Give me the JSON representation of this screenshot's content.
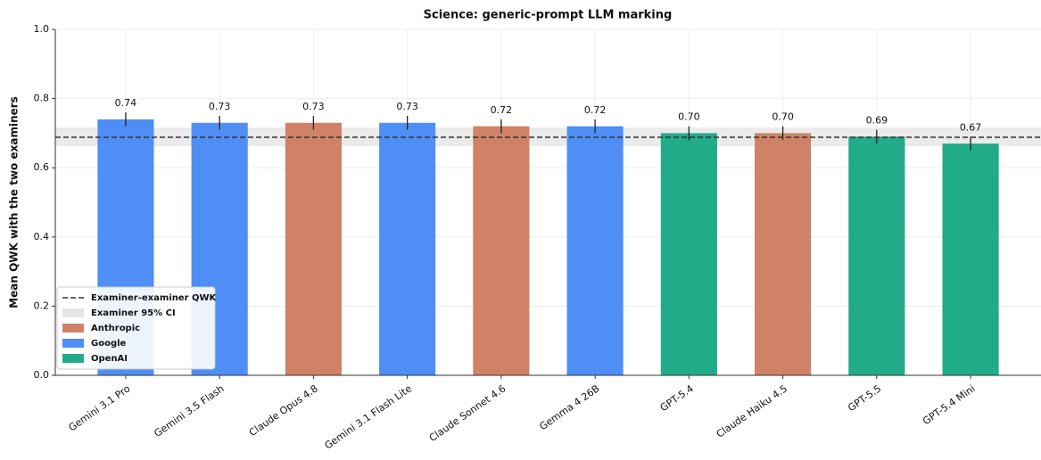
{
  "chart_data": {
    "type": "bar",
    "title": "Science: generic-prompt LLM marking",
    "ylabel": "Mean QWK with the two examiners",
    "categories": [
      "Gemini 3.1 Pro",
      "Gemini 3.5 Flash",
      "Claude Opus 4.8",
      "Gemini 3.1 Flash Lite",
      "Claude Sonnet 4.6",
      "Gemma 4 26B",
      "GPT-5.4",
      "Claude Haiku 4.5",
      "GPT-5.5",
      "GPT-5.4 Mini"
    ],
    "series": [
      {
        "name": "Anthropic",
        "color": "#cf8266",
        "values": [
          null,
          null,
          0.73,
          null,
          0.72,
          null,
          null,
          0.7,
          null,
          null
        ],
        "value_labels": [
          null,
          null,
          "0.73",
          null,
          "0.72",
          null,
          null,
          "0.70",
          null,
          null
        ],
        "errors": [
          null,
          null,
          0.02,
          null,
          0.02,
          null,
          null,
          0.02,
          null,
          null
        ]
      },
      {
        "name": "Google",
        "color": "#4f8ff5",
        "values": [
          0.74,
          0.73,
          null,
          0.73,
          null,
          0.72,
          null,
          null,
          null,
          null
        ],
        "value_labels": [
          "0.74",
          "0.73",
          null,
          "0.73",
          null,
          "0.72",
          null,
          null,
          null,
          null
        ],
        "errors": [
          0.02,
          0.02,
          null,
          0.02,
          null,
          0.02,
          null,
          null,
          null,
          null
        ]
      },
      {
        "name": "OpenAI",
        "color": "#22ab88",
        "values": [
          null,
          null,
          null,
          null,
          null,
          null,
          0.7,
          null,
          0.69,
          0.67
        ],
        "value_labels": [
          null,
          null,
          null,
          null,
          null,
          null,
          "0.70",
          null,
          "0.69",
          "0.67"
        ],
        "errors": [
          null,
          null,
          null,
          null,
          null,
          null,
          0.02,
          null,
          0.02,
          0.02
        ]
      }
    ],
    "reference": {
      "name": "Examiner-examiner QWK",
      "value": 0.688,
      "color": "#333333"
    },
    "ci": {
      "name": "Examiner 95% CI",
      "low": 0.662,
      "high": 0.716,
      "color": "#e6e6e6"
    },
    "ylim": [
      0,
      1
    ],
    "yticks": [
      {
        "value": 0,
        "label": "0.0"
      },
      0.2,
      0.4,
      0.6,
      0.8,
      {
        "value": 1,
        "label": "1.0"
      }
    ],
    "grid": true,
    "legend": "lower left"
  }
}
